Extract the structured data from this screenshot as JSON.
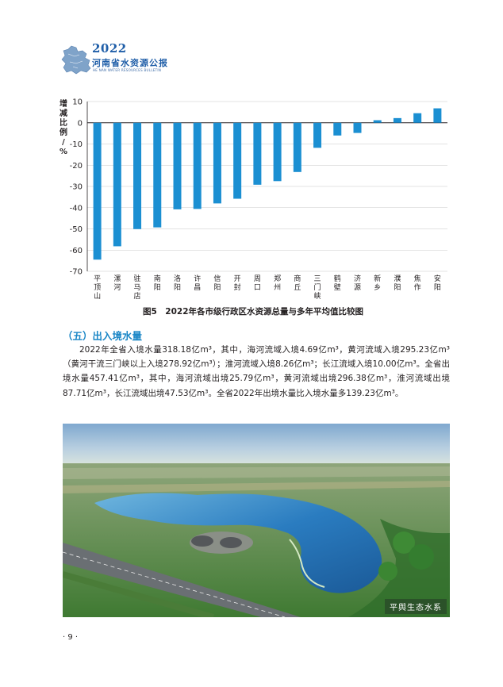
{
  "header": {
    "year": "2022",
    "title": "河南省水资源公报",
    "subtitle_en": "HE NAN WATER RESOURCES BULLETIN"
  },
  "figure": {
    "caption": "图5　2022年各市级行政区水资源总量与多年平均值比较图",
    "y_label": "增减比例/%"
  },
  "chart_data": {
    "type": "bar",
    "categories": [
      "平顶山",
      "漯河",
      "驻马店",
      "南阳",
      "洛阳",
      "许昌",
      "信阳",
      "开封",
      "周口",
      "郑州",
      "商丘",
      "三门峡",
      "鹤壁",
      "济源",
      "新乡",
      "濮阳",
      "焦作",
      "安阳"
    ],
    "values": [
      -64.5,
      -58.2,
      -50.1,
      -49.3,
      -40.8,
      -40.6,
      -38.0,
      -35.8,
      -29.2,
      -27.5,
      -23.2,
      -11.8,
      -6.0,
      -4.8,
      1.2,
      2.2,
      4.5,
      6.8
    ],
    "yticks": [
      10,
      0,
      -10,
      -20,
      -30,
      -40,
      -50,
      -60,
      -70
    ],
    "ylim": [
      -70,
      10
    ],
    "ylabel": "增减比例/%",
    "grid": true,
    "bar_color": "#1b8fd2"
  },
  "section": {
    "heading": "（五）出入境水量",
    "paragraph": "2022年全省入境水量318.18亿m³，其中，海河流域入境4.69亿m³，黄河流域入境295.23亿m³（黄河干流三门峡以上入境278.92亿m³）；淮河流域入境8.26亿m³；长江流域入境10.00亿m³。全省出境水量457.41亿m³，其中，海河流域出境25.79亿m³，黄河流域出境296.38亿m³，淮河流域出境87.71亿m³，长江流域出境47.53亿m³。全省2022年出境水量比入境水量多139.23亿m³。"
  },
  "photo": {
    "tag": "平舆生态水系"
  },
  "page_number": "· 9 ·"
}
